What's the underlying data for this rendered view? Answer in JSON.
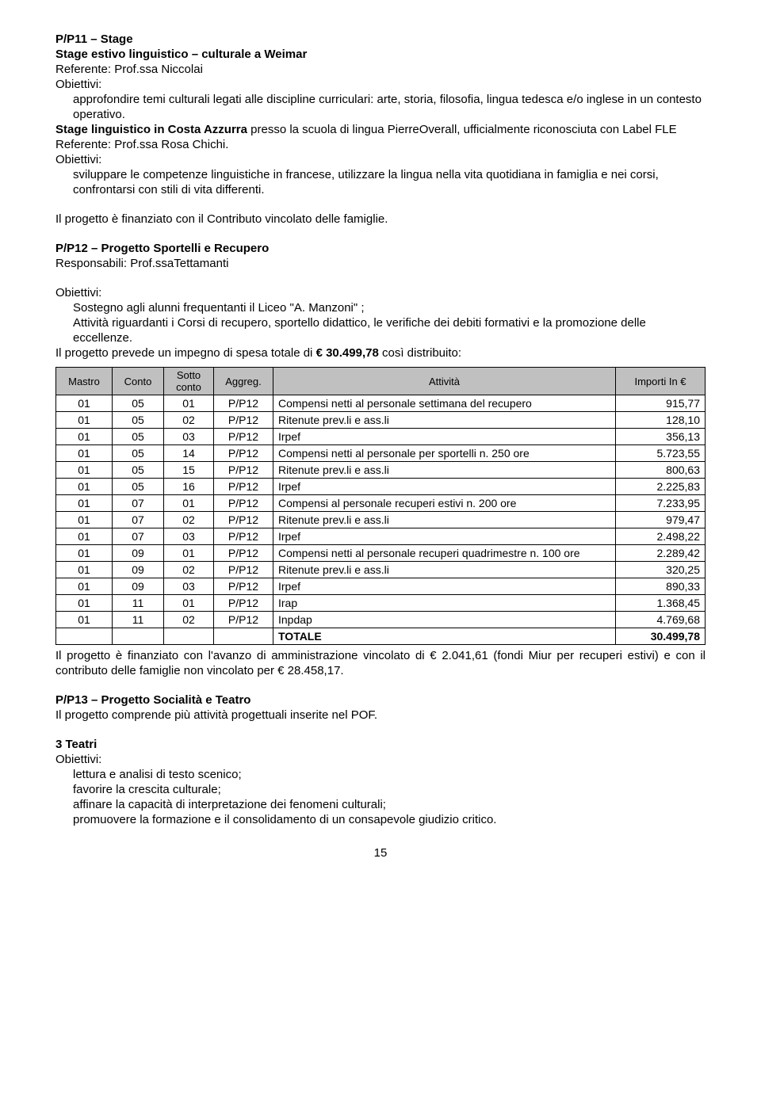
{
  "p11": {
    "title": "P/P11 – Stage",
    "sub1": "Stage estivo linguistico – culturale a Weimar",
    "ref1": "Referente: Prof.ssa Niccolai",
    "obj": "Obiettivi:",
    "bul1": "approfondire temi culturali legati alle discipline curriculari: arte, storia, filosofia, lingua tedesca e/o inglese in un contesto operativo.",
    "sub2a": "Stage linguistico in Costa Azzurra",
    "sub2b": " presso la scuola di lingua PierreOverall, ufficialmente riconosciuta con Label FLE",
    "ref2": "Referente: Prof.ssa Rosa Chichi.",
    "bul2": "sviluppare le competenze linguistiche in francese, utilizzare la lingua nella vita quotidiana in famiglia e nei corsi, confrontarsi con stili di vita differenti.",
    "note": "Il progetto è finanziato con il Contributo vincolato delle famiglie."
  },
  "p12": {
    "title": "P/P12 – Progetto Sportelli e Recupero",
    "resp": "Responsabili: Prof.ssaTettamanti",
    "obj": "Obiettivi:",
    "bul1": "Sostegno agli alunni frequentanti il Liceo \"A. Manzoni\" ;",
    "bul2": "Attività riguardanti i Corsi di recupero, sportello didattico, le verifiche dei debiti formativi e la promozione delle eccellenze.",
    "intro_a": "Il progetto prevede un impegno di spesa totale di ",
    "intro_b": "€ 30.499,78",
    "intro_c": " così distribuito:",
    "th": {
      "mastro": "Mastro",
      "conto": "Conto",
      "sotto": "Sotto conto",
      "agg": "Aggreg.",
      "att": "Attività",
      "imp": "Importi In €"
    },
    "rows": [
      {
        "m": "01",
        "c": "05",
        "s": "01",
        "a": "P/P12",
        "d": "Compensi netti al personale settimana del recupero",
        "v": "915,77"
      },
      {
        "m": "01",
        "c": "05",
        "s": "02",
        "a": "P/P12",
        "d": "Ritenute prev.li e ass.li",
        "v": "128,10"
      },
      {
        "m": "01",
        "c": "05",
        "s": "03",
        "a": "P/P12",
        "d": "Irpef",
        "v": "356,13"
      },
      {
        "m": "01",
        "c": "05",
        "s": "14",
        "a": "P/P12",
        "d": "Compensi netti al personale per sportelli n. 250 ore",
        "v": "5.723,55"
      },
      {
        "m": "01",
        "c": "05",
        "s": "15",
        "a": "P/P12",
        "d": "Ritenute prev.li e ass.li",
        "v": "800,63"
      },
      {
        "m": "01",
        "c": "05",
        "s": "16",
        "a": "P/P12",
        "d": "Irpef",
        "v": "2.225,83"
      },
      {
        "m": "01",
        "c": "07",
        "s": "01",
        "a": "P/P12",
        "d": "Compensi al personale recuperi estivi n. 200 ore",
        "v": "7.233,95"
      },
      {
        "m": "01",
        "c": "07",
        "s": "02",
        "a": "P/P12",
        "d": "Ritenute prev.li e ass.li",
        "v": "979,47"
      },
      {
        "m": "01",
        "c": "07",
        "s": "03",
        "a": "P/P12",
        "d": "Irpef",
        "v": "2.498,22"
      },
      {
        "m": "01",
        "c": "09",
        "s": "01",
        "a": "P/P12",
        "d": "Compensi netti al personale recuperi  quadrimestre n. 100 ore",
        "v": "2.289,42"
      },
      {
        "m": "01",
        "c": "09",
        "s": "02",
        "a": "P/P12",
        "d": "Ritenute prev.li e ass.li",
        "v": "320,25"
      },
      {
        "m": "01",
        "c": "09",
        "s": "03",
        "a": "P/P12",
        "d": "Irpef",
        "v": "890,33"
      },
      {
        "m": "01",
        "c": "11",
        "s": "01",
        "a": "P/P12",
        "d": "Irap",
        "v": "1.368,45"
      },
      {
        "m": "01",
        "c": "11",
        "s": "02",
        "a": "P/P12",
        "d": "Inpdap",
        "v": "4.769,68"
      }
    ],
    "tot_label": "TOTALE",
    "tot_val": "30.499,78",
    "after": "Il progetto è finanziato con l'avanzo di amministrazione vincolato di € 2.041,61 (fondi Miur per recuperi estivi) e con il contributo delle famiglie non vincolato per € 28.458,17."
  },
  "p13": {
    "title": "P/P13 – Progetto Socialità e Teatro",
    "line": "Il progetto comprende più attività progettuali inserite nel POF.",
    "sub": "3 Teatri",
    "obj": "Obiettivi:",
    "b1": "lettura e analisi di testo scenico;",
    "b2": "favorire la crescita culturale;",
    "b3": "affinare la capacità di interpretazione dei fenomeni culturali;",
    "b4": "promuovere la formazione e il consolidamento di un consapevole giudizio critico."
  },
  "bullet_char": "",
  "page_number": "15"
}
